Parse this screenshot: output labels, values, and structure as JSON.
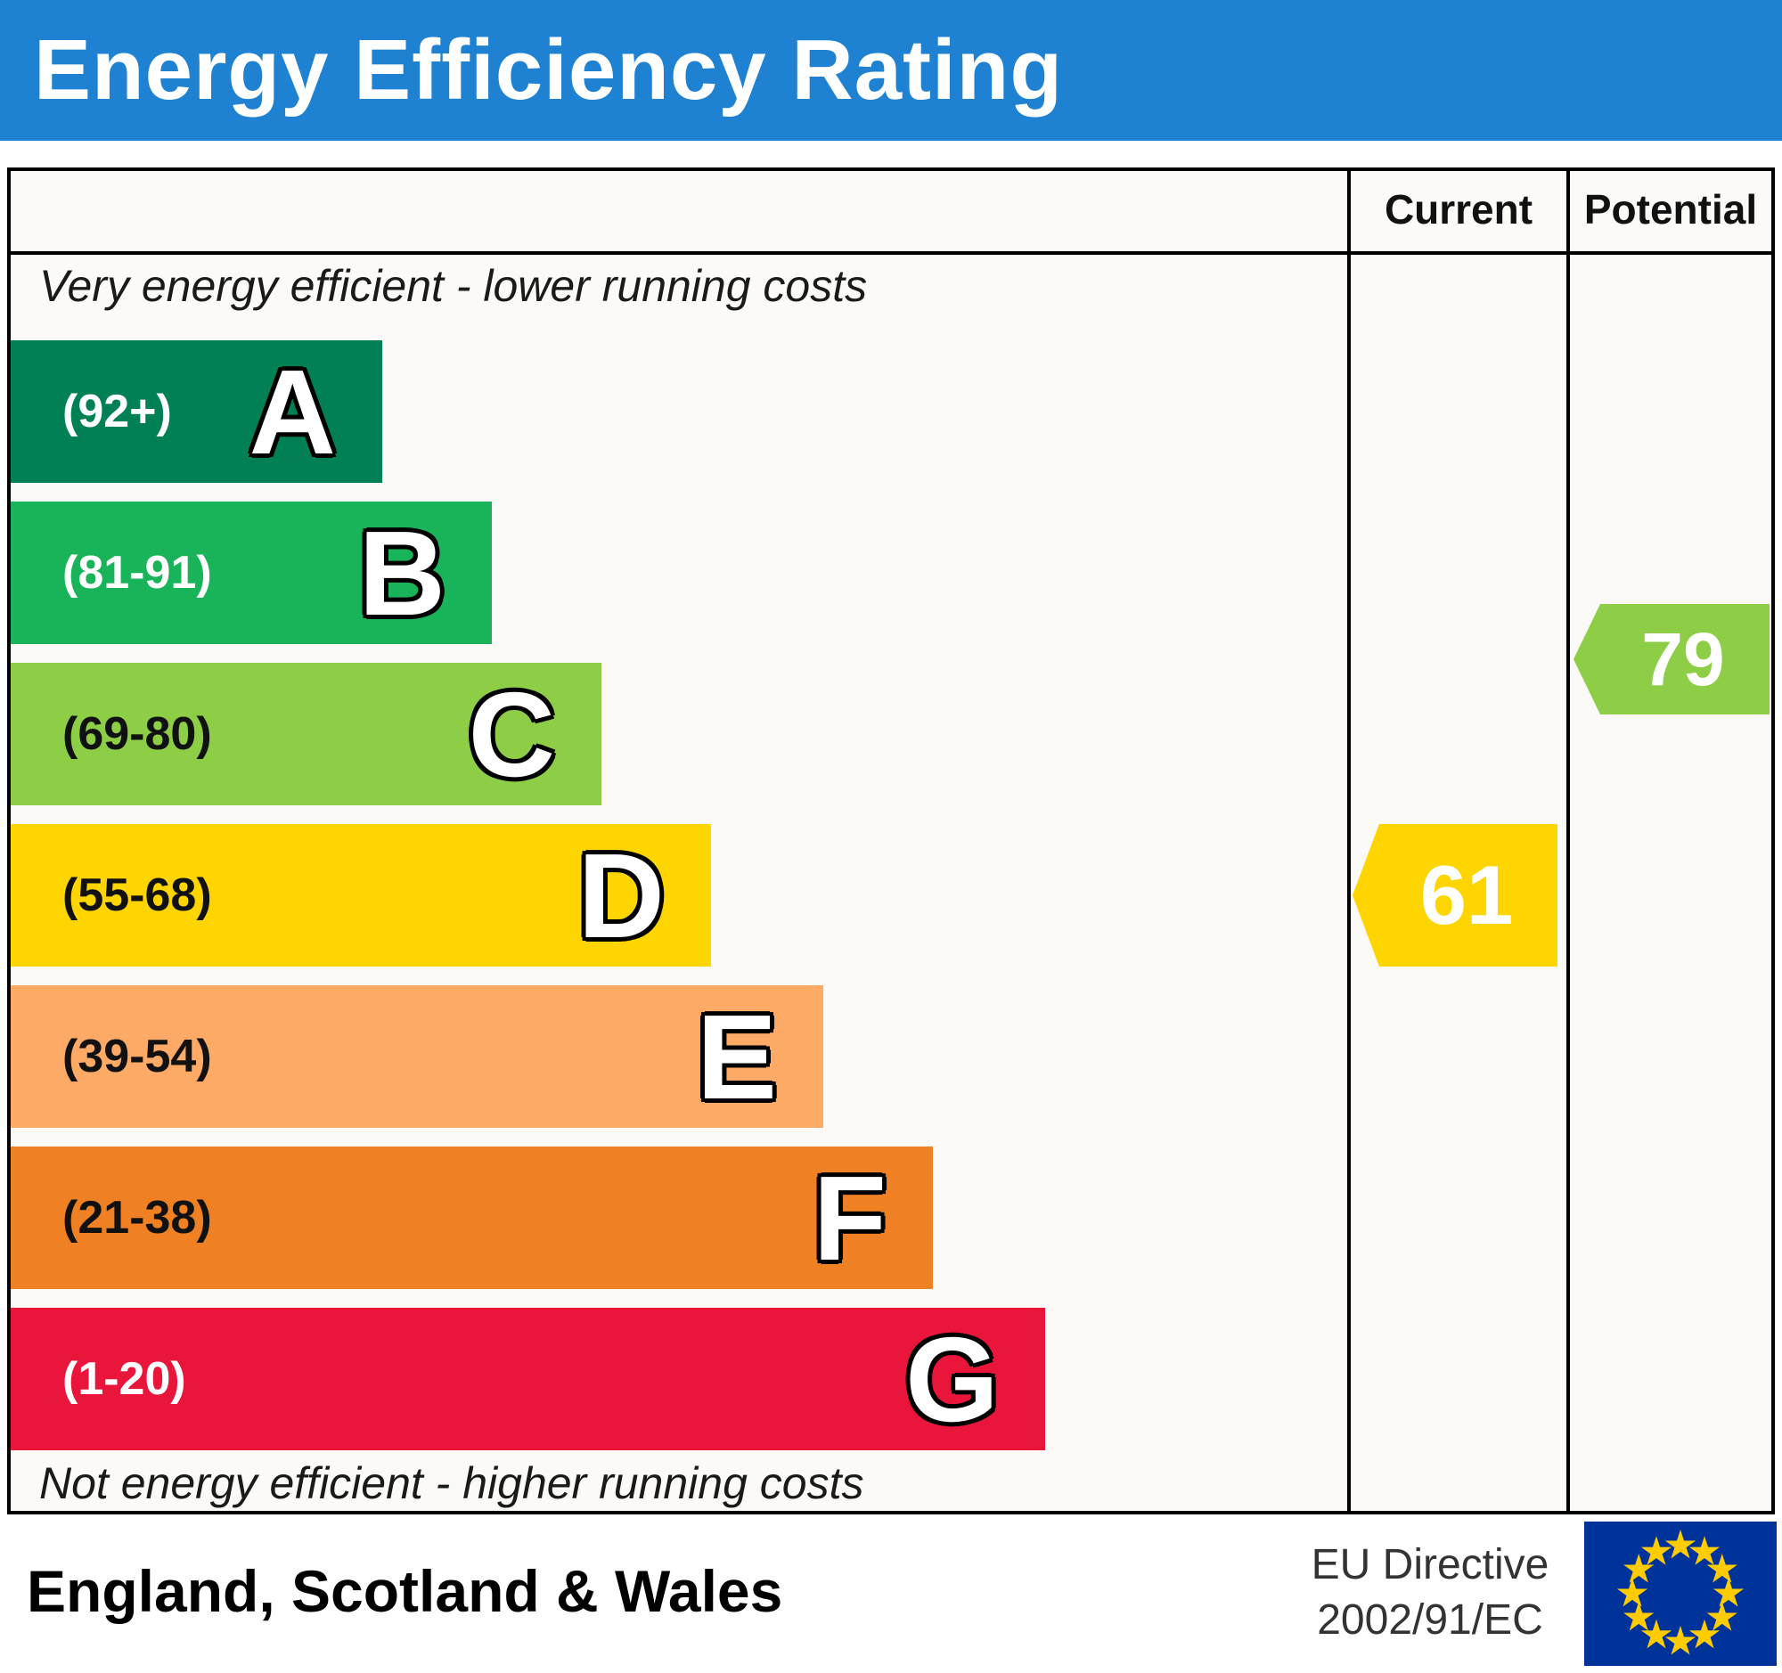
{
  "title": "Energy Efficiency Rating",
  "header_bg": "#1e81d2",
  "columns": {
    "current_label": "Current",
    "potential_label": "Potential"
  },
  "notes": {
    "top": "Very energy efficient - lower running costs",
    "bottom": "Not energy efficient - higher running costs"
  },
  "bands": [
    {
      "letter": "A",
      "range": "(92+)",
      "color": "#008054",
      "width_pct": 27.8,
      "range_text_color": "#ffffff"
    },
    {
      "letter": "B",
      "range": "(81-91)",
      "color": "#19b459",
      "width_pct": 36.0,
      "range_text_color": "#ffffff"
    },
    {
      "letter": "C",
      "range": "(69-80)",
      "color": "#8dce46",
      "width_pct": 44.2,
      "range_text_color": "#111111"
    },
    {
      "letter": "D",
      "range": "(55-68)",
      "color": "#ffd500",
      "width_pct": 52.4,
      "range_text_color": "#111111"
    },
    {
      "letter": "E",
      "range": "(39-54)",
      "color": "#fcaa65",
      "width_pct": 60.8,
      "range_text_color": "#111111"
    },
    {
      "letter": "F",
      "range": "(21-38)",
      "color": "#ef8023",
      "width_pct": 69.0,
      "range_text_color": "#111111"
    },
    {
      "letter": "G",
      "range": "(1-20)",
      "color": "#e9153b",
      "width_pct": 77.4,
      "range_text_color": "#ffffff"
    }
  ],
  "ratings": {
    "current": {
      "value": "61",
      "color": "#ffd500",
      "text_color": "#ffffff"
    },
    "potential": {
      "value": "79",
      "color": "#8dce46",
      "text_color": "#ffffff"
    }
  },
  "footer": {
    "region": "England, Scotland & Wales",
    "directive": [
      "EU Directive",
      "2002/91/EC"
    ],
    "flag_colors": {
      "field": "#003399",
      "stars": "#ffcc00"
    }
  },
  "chart_data": {
    "type": "bar",
    "title": "Energy Efficiency Rating",
    "categories": [
      "A (92+)",
      "B (81-91)",
      "C (69-80)",
      "D (55-68)",
      "E (39-54)",
      "F (21-38)",
      "G (1-20)"
    ],
    "band_colors": [
      "#008054",
      "#19b459",
      "#8dce46",
      "#ffd500",
      "#fcaa65",
      "#ef8023",
      "#e9153b"
    ],
    "scale_range": [
      1,
      100
    ],
    "series": [
      {
        "name": "Current",
        "values": [
          61
        ],
        "band": "D"
      },
      {
        "name": "Potential",
        "values": [
          79
        ],
        "band": "C"
      }
    ],
    "top_annotation": "Very energy efficient - lower running costs",
    "bottom_annotation": "Not energy efficient - higher running costs",
    "region": "England, Scotland & Wales",
    "directive": "EU Directive 2002/91/EC"
  }
}
